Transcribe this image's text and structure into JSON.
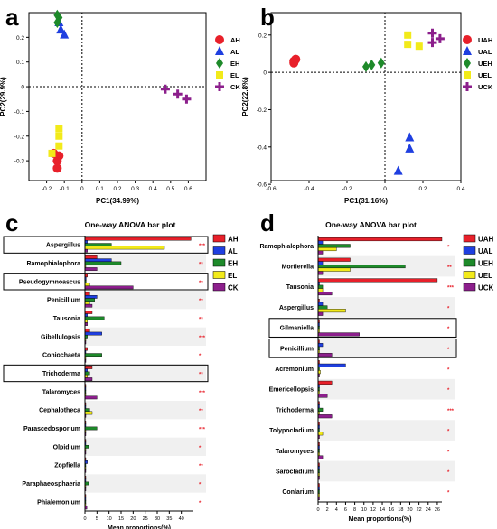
{
  "colors": {
    "red": "#e8202a",
    "blue": "#1f3fe0",
    "green": "#1e8a2a",
    "yellow": "#f2ea1a",
    "purple": "#8c1f8c"
  },
  "chart_data": [
    {
      "panel": "a",
      "type": "scatter",
      "xlabel": "PC1(34.99%)",
      "ylabel": "PC2(29.9%)",
      "xlim": [
        -0.3,
        0.7
      ],
      "ylim": [
        -0.38,
        0.3
      ],
      "xticks": [
        "-0.2",
        "-0.1",
        "0",
        "0.1",
        "0.2",
        "0.3",
        "0.4",
        "0.5",
        "0.6"
      ],
      "yticks": [
        "-0.3",
        "-0.2",
        "-0.1",
        "0",
        "0.1",
        "0.2"
      ],
      "grid": false,
      "legend_position": "right",
      "series": [
        {
          "name": "AH",
          "marker": "circle",
          "color": "#e8202a",
          "points": [
            [
              -0.14,
              -0.3
            ],
            [
              -0.14,
              -0.33
            ],
            [
              -0.16,
              -0.27
            ],
            [
              -0.13,
              -0.28
            ]
          ]
        },
        {
          "name": "AL",
          "marker": "triangle",
          "color": "#1f3fe0",
          "points": [
            [
              -0.12,
              0.23
            ],
            [
              -0.1,
              0.21
            ],
            [
              -0.13,
              0.26
            ]
          ]
        },
        {
          "name": "EH",
          "marker": "diamond",
          "color": "#1e8a2a",
          "points": [
            [
              -0.14,
              0.29
            ],
            [
              -0.13,
              0.28
            ],
            [
              -0.14,
              0.26
            ]
          ]
        },
        {
          "name": "EL",
          "marker": "square",
          "color": "#f2ea1a",
          "points": [
            [
              -0.13,
              -0.17
            ],
            [
              -0.13,
              -0.2
            ],
            [
              -0.17,
              -0.27
            ],
            [
              -0.13,
              -0.24
            ]
          ]
        },
        {
          "name": "CK",
          "marker": "plus",
          "color": "#8c1f8c",
          "points": [
            [
              0.47,
              -0.01
            ],
            [
              0.54,
              -0.03
            ],
            [
              0.59,
              -0.05
            ]
          ]
        }
      ]
    },
    {
      "panel": "b",
      "type": "scatter",
      "xlabel": "PC1(31.16%)",
      "ylabel": "PC2(22.8%)",
      "xlim": [
        -0.6,
        0.4
      ],
      "ylim": [
        -0.58,
        0.32
      ],
      "xticks": [
        "-0.6",
        "-0.4",
        "-0.2",
        "0",
        "0.2",
        "0.4"
      ],
      "yticks": [
        "-0.6",
        "-0.4",
        "-0.2",
        "0",
        "0.2"
      ],
      "grid": false,
      "legend_position": "right",
      "series": [
        {
          "name": "UAH",
          "marker": "circle",
          "color": "#e8202a",
          "points": [
            [
              -0.48,
              0.06
            ],
            [
              -0.47,
              0.07
            ],
            [
              -0.48,
              0.05
            ]
          ]
        },
        {
          "name": "UAL",
          "marker": "triangle",
          "color": "#1f3fe0",
          "points": [
            [
              0.13,
              -0.35
            ],
            [
              0.13,
              -0.41
            ],
            [
              0.07,
              -0.53
            ]
          ]
        },
        {
          "name": "UEH",
          "marker": "diamond",
          "color": "#1e8a2a",
          "points": [
            [
              -0.1,
              0.03
            ],
            [
              -0.07,
              0.04
            ],
            [
              -0.02,
              0.05
            ]
          ]
        },
        {
          "name": "UEL",
          "marker": "square",
          "color": "#f2ea1a",
          "points": [
            [
              0.12,
              0.2
            ],
            [
              0.12,
              0.15
            ],
            [
              0.18,
              0.14
            ]
          ]
        },
        {
          "name": "UCK",
          "marker": "plus",
          "color": "#8c1f8c",
          "points": [
            [
              0.25,
              0.21
            ],
            [
              0.29,
              0.18
            ],
            [
              0.25,
              0.16
            ]
          ]
        }
      ]
    },
    {
      "panel": "c",
      "type": "bar",
      "orientation": "horizontal",
      "title": "One-way ANOVA bar plot",
      "xlabel": "Mean proportions(%)",
      "xlim": [
        0,
        45
      ],
      "xticks": [
        "0",
        "5",
        "10",
        "15",
        "20",
        "25",
        "30",
        "35",
        "40"
      ],
      "legend_position": "right",
      "series_names": [
        "AH",
        "AL",
        "EH",
        "EL",
        "CK"
      ],
      "series_colors": [
        "#e8202a",
        "#1f3fe0",
        "#1e8a2a",
        "#f2ea1a",
        "#8c1f8c"
      ],
      "rows": [
        {
          "label": "Aspergillus",
          "values": [
            44,
            1,
            11,
            33,
            1
          ],
          "sig": "***",
          "boxed": true
        },
        {
          "label": "Ramophialophora",
          "values": [
            5,
            11,
            15,
            0.3,
            5
          ],
          "sig": "**",
          "boxed": false
        },
        {
          "label": "Pseudogymnoascus",
          "values": [
            1,
            0.5,
            0.5,
            2,
            20
          ],
          "sig": "**",
          "boxed": true
        },
        {
          "label": "Penicillium",
          "values": [
            2,
            5,
            4,
            2,
            3
          ],
          "sig": "**",
          "boxed": false
        },
        {
          "label": "Tausonia",
          "values": [
            3,
            1,
            8,
            1,
            1
          ],
          "sig": "**",
          "boxed": false
        },
        {
          "label": "Gibellulopsis",
          "values": [
            2,
            7,
            1,
            0.3,
            0.3
          ],
          "sig": "***",
          "boxed": false
        },
        {
          "label": "Coniochaeta",
          "values": [
            1,
            0.3,
            7,
            0.3,
            0.3
          ],
          "sig": "*",
          "boxed": false
        },
        {
          "label": "Trichoderma",
          "values": [
            3,
            1,
            2,
            1,
            3
          ],
          "sig": "**",
          "boxed": true
        },
        {
          "label": "Talaromyces",
          "values": [
            0.3,
            0.3,
            0.3,
            0.3,
            5
          ],
          "sig": "***",
          "boxed": false
        },
        {
          "label": "Cephalotheca",
          "values": [
            0.3,
            0.3,
            2,
            3,
            0.3
          ],
          "sig": "**",
          "boxed": false
        },
        {
          "label": "Parascedosporium",
          "values": [
            0.3,
            0.3,
            5,
            0.3,
            0.3
          ],
          "sig": "***",
          "boxed": false
        },
        {
          "label": "Olpidium",
          "values": [
            0.3,
            0.3,
            1.5,
            0.3,
            0.3
          ],
          "sig": "*",
          "boxed": false
        },
        {
          "label": "Zopfiella",
          "values": [
            0.3,
            1,
            0.3,
            0.3,
            0.3
          ],
          "sig": "**",
          "boxed": false
        },
        {
          "label": "Paraphaeosphaeria",
          "values": [
            0.3,
            0.3,
            1.5,
            0.3,
            0.3
          ],
          "sig": "*",
          "boxed": false
        },
        {
          "label": "Phialemonium",
          "values": [
            0.3,
            0.3,
            0.3,
            0.3,
            0.8
          ],
          "sig": "*",
          "boxed": false
        }
      ]
    },
    {
      "panel": "d",
      "type": "bar",
      "orientation": "horizontal",
      "title": "One-way ANOVA bar plot",
      "xlabel": "Mean proportions(%)",
      "xlim": [
        0,
        27
      ],
      "xticks": [
        "0",
        "2",
        "4",
        "6",
        "8",
        "10",
        "12",
        "14",
        "16",
        "18",
        "20",
        "22",
        "24",
        "26"
      ],
      "legend_position": "right",
      "series_names": [
        "UAH",
        "UAL",
        "UEH",
        "UEL",
        "UCK"
      ],
      "series_colors": [
        "#e8202a",
        "#1f3fe0",
        "#1e8a2a",
        "#f2ea1a",
        "#8c1f8c"
      ],
      "rows": [
        {
          "label": "Ramophialophora",
          "values": [
            27,
            1,
            7,
            4,
            1
          ],
          "sig": "*",
          "boxed": false
        },
        {
          "label": "Mortierella",
          "values": [
            7,
            1,
            19,
            7,
            1
          ],
          "sig": "**",
          "boxed": false
        },
        {
          "label": "Tausonia",
          "values": [
            26,
            0.3,
            1,
            1,
            3
          ],
          "sig": "***",
          "boxed": false
        },
        {
          "label": "Aspergillus",
          "values": [
            0.3,
            1,
            2,
            6,
            1
          ],
          "sig": "*",
          "boxed": false
        },
        {
          "label": "Gilmaniella",
          "values": [
            0.3,
            0.3,
            0.3,
            0.3,
            9
          ],
          "sig": "*",
          "boxed": true
        },
        {
          "label": "Penicillium",
          "values": [
            0.3,
            1,
            0.3,
            0.3,
            3
          ],
          "sig": "*",
          "boxed": true
        },
        {
          "label": "Acremonium",
          "values": [
            0.3,
            6,
            0.3,
            0.5,
            0.3
          ],
          "sig": "*",
          "boxed": false
        },
        {
          "label": "Emericellopsis",
          "values": [
            3,
            0.3,
            0.3,
            0.3,
            2
          ],
          "sig": "*",
          "boxed": false
        },
        {
          "label": "Trichoderma",
          "values": [
            0.3,
            0.3,
            1,
            0.3,
            3
          ],
          "sig": "***",
          "boxed": false
        },
        {
          "label": "Tolypocladium",
          "values": [
            0.3,
            0.3,
            0.3,
            1,
            0.3
          ],
          "sig": "*",
          "boxed": false
        },
        {
          "label": "Talaromyces",
          "values": [
            0.3,
            0.3,
            0.3,
            0.3,
            1
          ],
          "sig": "*",
          "boxed": false
        },
        {
          "label": "Sarocladium",
          "values": [
            0.3,
            0.3,
            0.3,
            0.3,
            0.3
          ],
          "sig": "*",
          "boxed": false
        },
        {
          "label": "Conlarium",
          "values": [
            0.3,
            0.3,
            0.3,
            0.3,
            0.3
          ],
          "sig": "*",
          "boxed": false
        }
      ]
    }
  ]
}
